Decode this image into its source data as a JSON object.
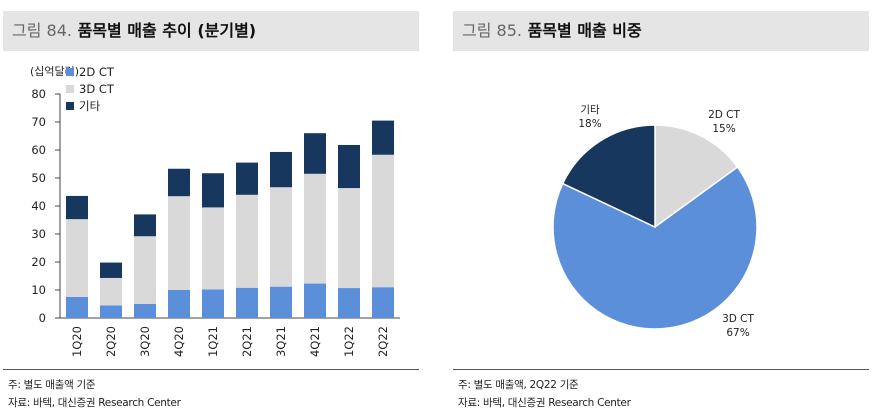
{
  "left_panel": {
    "figure_number": "그림 84.",
    "title": "품목별 매출 추이 (분기별)",
    "note": "주: 별도 매출액 기준",
    "source": "자료: 바텍, 대신증권 Research Center"
  },
  "right_panel": {
    "figure_number": "그림 85.",
    "title": "품목별 매출 비중",
    "note": "주: 별도 매출액, 2Q22 기준",
    "source": "자료: 바텍, 대신증권 Research Center"
  },
  "colors": {
    "2d_ct": "#5b8fd9",
    "3d_ct": "#d9d9d9",
    "other": "#17375e"
  },
  "chart_data": [
    {
      "type": "bar",
      "stacked": true,
      "title": "품목별 매출 추이 (분기별)",
      "ylabel": "(십억달러)",
      "categories": [
        "1Q20",
        "2Q20",
        "3Q20",
        "4Q20",
        "1Q21",
        "2Q21",
        "3Q21",
        "4Q21",
        "1Q22",
        "2Q22"
      ],
      "series": [
        {
          "name": "2D CT",
          "values": [
            7.5,
            4.5,
            5.0,
            10.0,
            10.2,
            10.8,
            11.2,
            12.3,
            10.7,
            11.0
          ]
        },
        {
          "name": "3D CT",
          "values": [
            27.8,
            9.8,
            24.2,
            33.5,
            29.3,
            33.2,
            35.5,
            39.2,
            35.7,
            47.3
          ]
        },
        {
          "name": "기타",
          "values": [
            8.3,
            5.5,
            7.8,
            9.8,
            12.2,
            11.5,
            12.6,
            14.5,
            15.4,
            12.2
          ]
        }
      ],
      "ylim": [
        0,
        80
      ],
      "yticks": [
        0,
        10,
        20,
        30,
        40,
        50,
        60,
        70,
        80
      ],
      "legend_position": "top-left",
      "grid": false
    },
    {
      "type": "pie",
      "title": "품목별 매출 비중",
      "slices": [
        {
          "label": "2D CT",
          "value": 15,
          "display": "15%"
        },
        {
          "label": "3D CT",
          "value": 67,
          "display": "67%"
        },
        {
          "label": "기타",
          "value": 18,
          "display": "18%"
        }
      ]
    }
  ]
}
